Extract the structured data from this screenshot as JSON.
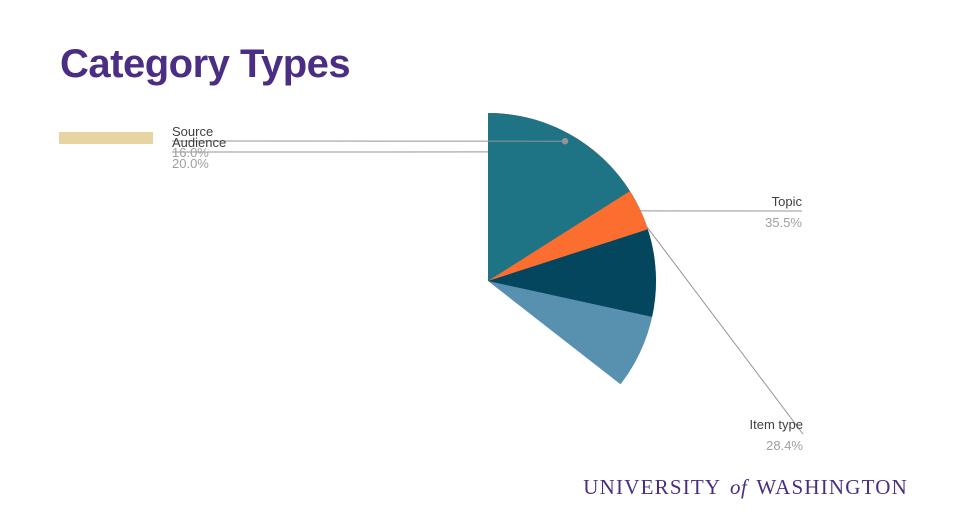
{
  "page": {
    "background": "#ffffff",
    "accent_bar_color": "#e8d3a2"
  },
  "title": {
    "text": "Category Types",
    "color": "#4b2e83"
  },
  "chart_data": {
    "type": "pie",
    "title": "Category Types",
    "start_angle_deg": 0,
    "direction": "clockwise",
    "legend_position": "none",
    "labels_style": "outside-leader-lines",
    "slices": [
      {
        "label": "Topic",
        "value": 35.5,
        "pct_label": "35.5%",
        "color": "#5891af",
        "label_side": "right"
      },
      {
        "label": "Item type",
        "value": 28.4,
        "pct_label": "28.4%",
        "color": "#05465f",
        "label_side": "right"
      },
      {
        "label": "Audience",
        "value": 20.0,
        "pct_label": "20.0%",
        "color": "#fc6d30",
        "label_side": "left"
      },
      {
        "label": "Source",
        "value": 16.0,
        "pct_label": "16.0%",
        "color": "#1e7485",
        "label_side": "left"
      }
    ],
    "leader_line_color": "#949494",
    "label_color": "#3f3f3f",
    "pct_color": "#a0a0a0"
  },
  "footer": {
    "wordmark": {
      "part1": "UNIVERSITY",
      "of": "of",
      "part2": "WASHINGTON",
      "color": "#4b2e83"
    }
  }
}
